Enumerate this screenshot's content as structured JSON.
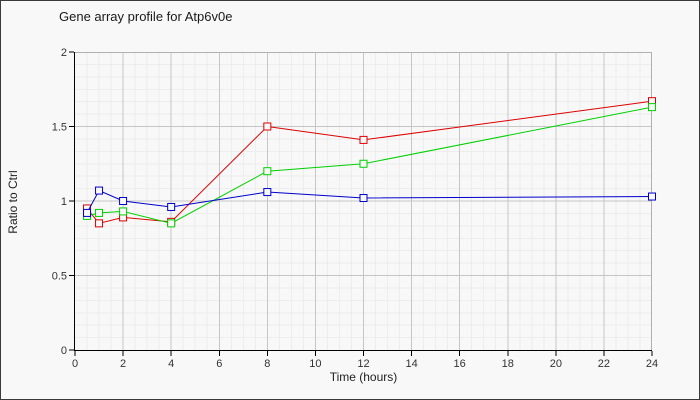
{
  "chart_data": {
    "type": "line",
    "title": "Gene array profile for Atp6v0e",
    "xlabel": "Time (hours)",
    "ylabel": "Ratio to Ctrl",
    "x": [
      0.5,
      1,
      2,
      4,
      8,
      12,
      24
    ],
    "series": [
      {
        "name": "series-red",
        "color": "#dd0000",
        "values": [
          0.95,
          0.85,
          0.89,
          0.86,
          1.5,
          1.41,
          1.67
        ]
      },
      {
        "name": "series-green",
        "color": "#00d000",
        "values": [
          0.9,
          0.92,
          0.93,
          0.85,
          1.2,
          1.25,
          1.63
        ]
      },
      {
        "name": "series-blue",
        "color": "#0000cc",
        "values": [
          0.92,
          1.07,
          1.0,
          0.96,
          1.06,
          1.02,
          1.03
        ]
      }
    ],
    "xlim": [
      0,
      24
    ],
    "ylim": [
      0,
      2
    ],
    "x_ticks": [
      0,
      2,
      4,
      6,
      8,
      10,
      12,
      14,
      16,
      18,
      20,
      22,
      24
    ],
    "y_ticks": [
      0,
      0.5,
      1,
      1.5,
      2
    ],
    "y_tick_labels": [
      "0",
      "0.5",
      "1",
      "1.5",
      "2"
    ],
    "x_minor_step": 0.5,
    "y_minor_divisions_per_unit": 12,
    "legend": "none",
    "marker": "open-square",
    "grid": "on"
  },
  "palette": {
    "page_background": "#f8f8f8",
    "plot_background": "#f8f8f8",
    "minor_grid": "#ededed",
    "major_grid": "#c6c6c6",
    "plot_border": "#b0b0b0",
    "axis": "#000000",
    "tick_text": "#333333",
    "frame_border": "#3a3a3a"
  }
}
